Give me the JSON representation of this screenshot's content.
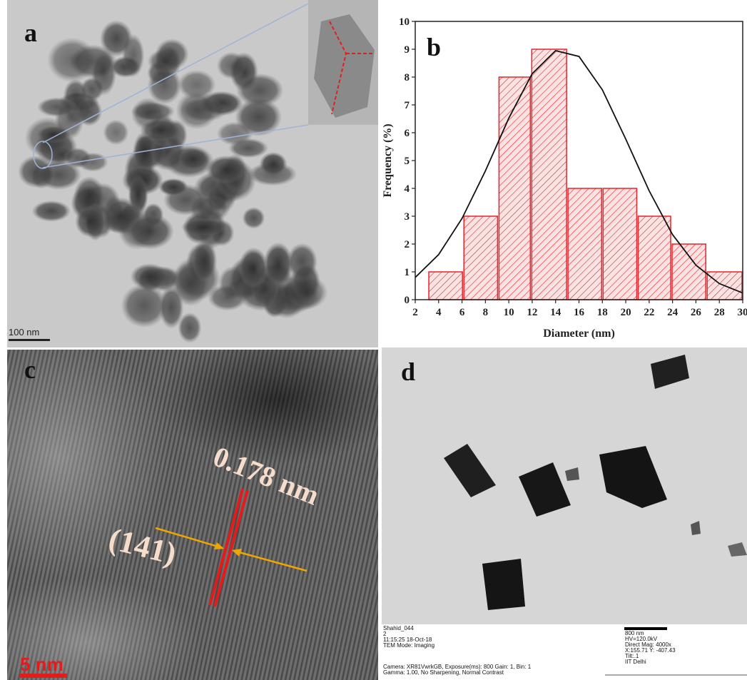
{
  "chart_data": {
    "type": "histogram",
    "panel_label": "b",
    "xlabel": "Diameter (nm)",
    "ylabel": "Frequency (%)",
    "bins": [
      3.1,
      6.1,
      9.1,
      11.9,
      15.0,
      18.0,
      21.0,
      23.9,
      26.9,
      30.0
    ],
    "values": [
      1,
      3,
      8,
      9,
      4,
      4,
      3,
      2,
      1
    ],
    "color": "#e8242a",
    "fit_curve": {
      "x": [
        2,
        4,
        6,
        8,
        10,
        12,
        14,
        16,
        18,
        20,
        22,
        24,
        26,
        28,
        30
      ],
      "values": [
        0.8,
        1.62,
        2.92,
        4.63,
        6.52,
        8.12,
        8.95,
        8.74,
        7.54,
        5.77,
        3.91,
        2.34,
        1.24,
        0.58,
        0.24
      ],
      "color": "#111111"
    },
    "xlim": [
      2,
      30
    ],
    "xticks": [
      2,
      4,
      6,
      8,
      10,
      12,
      14,
      16,
      18,
      20,
      22,
      24,
      26,
      28,
      30
    ],
    "ylim": [
      0,
      10
    ],
    "yticks": [
      0,
      1,
      2,
      3,
      4,
      5,
      6,
      7,
      8,
      9,
      10
    ]
  },
  "panels": {
    "a": {
      "label": "a",
      "scale_bar": "100 nm"
    },
    "c": {
      "label": "c",
      "plane": "(141)",
      "d_spacing": "0.178 nm",
      "scale_bar": "5 nm"
    },
    "d": {
      "label": "d",
      "info_left": [
        "Shahid_044",
        "2",
        "11:15:25 18-Oct-18",
        "TEM Mode: Imaging"
      ],
      "info_bottom": [
        "Camera: XR81VwrkGB, Exposure(ms): 800 Gain: 1, Bin:  1",
        "Gamma: 1.00, No Sharpening, Normal Contrast"
      ],
      "info_right": [
        "800 nm",
        "HV=120.0kV",
        "Direct Mag: 4000x",
        "X:155.71 Y: -407.43",
        "Tilt:.1",
        "IIT Delhi"
      ]
    }
  }
}
